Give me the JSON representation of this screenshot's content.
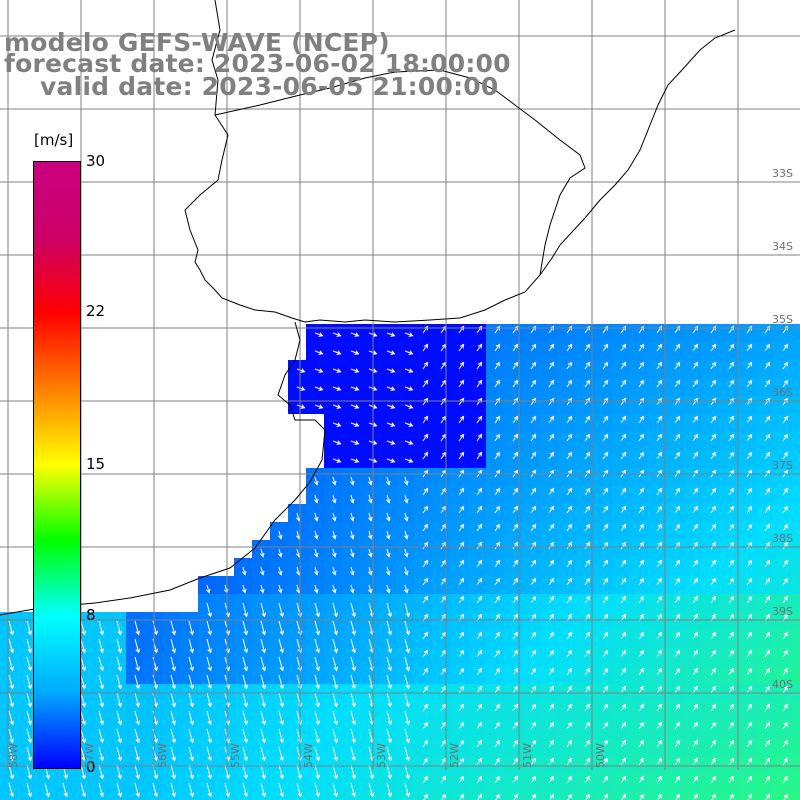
{
  "title": {
    "line1": "modelo GEFS-WAVE (NCEP)",
    "line2": "forecast date: 2023-06-02 18:00:00",
    "line3": "valid date: 2023-06-05 21:00:00"
  },
  "colorbar": {
    "unit": "[m/s]",
    "ticks": [
      "30",
      "22",
      "15",
      "8",
      "0"
    ],
    "range": [
      0,
      30
    ],
    "colors": [
      "#0000ff",
      "#00aaff",
      "#00ffff",
      "#00ff00",
      "#ffff00",
      "#ff8000",
      "#ff0000",
      "#cc0066",
      "#cc0080"
    ]
  },
  "grid": {
    "lat_labels": [
      "33S",
      "34S",
      "35S",
      "36S",
      "37S",
      "38S",
      "39S",
      "40S"
    ],
    "lon_labels": [
      "58W",
      "57W",
      "56W",
      "55W",
      "54W",
      "53W",
      "52W",
      "51W",
      "50W"
    ]
  },
  "colors": {
    "land": "#ffffff",
    "coast": "#000000",
    "grid": "#808080",
    "arrow": "#ffffff",
    "title": "#808080"
  }
}
